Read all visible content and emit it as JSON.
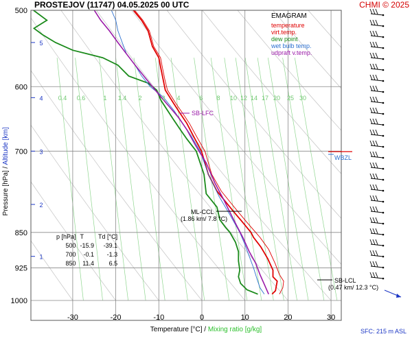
{
  "header": {
    "title": "PROSTEJOV (11747)    04.05.2025 00 UTC",
    "copyright": "CHMI © 2025"
  },
  "legend": {
    "head": "EMAGRAM",
    "items": [
      {
        "label": "temperature",
        "color": "#e00000"
      },
      {
        "label": "virt.temp.",
        "color": "#e00000"
      },
      {
        "label": "dew point",
        "color": "#1a8a1a"
      },
      {
        "label": "wet bulb temp.",
        "color": "#2a6fd0"
      },
      {
        "label": "udpraft v.temp.",
        "color": "#9a1aa8"
      }
    ]
  },
  "footer": {
    "sfc": "SFC: 215 m ASL",
    "xtitle_a": "Temperature [°C]  /  ",
    "xtitle_b": "Mixing ratio [g/kg]"
  },
  "y_axis": {
    "pressure_title": "Pressure [hPa]",
    "sep": "  /  ",
    "alt_title": "Altitude [km]"
  },
  "table": {
    "headers": [
      "p [hPa]",
      "T",
      "Td [°C]"
    ],
    "rows": [
      [
        "500",
        "-15.9",
        "-39.1"
      ],
      [
        "700",
        "-0.1",
        "-1.3"
      ],
      [
        "850",
        "11.4",
        "6.5"
      ]
    ]
  },
  "annotations": {
    "sb_lfc": "SB-LFC",
    "ml_ccl": "ML-CCL",
    "ml_ccl_sub": "(1.86 km/ 7.8 °C)",
    "sb_lcl": "SB-LCL",
    "sb_lcl_sub": "(0.47 km/ 12.3 °C)",
    "wbzl": "WBZL"
  },
  "chart_data": {
    "type": "line",
    "title": "PROSTEJOV (11747)    04.05.2025 00 UTC",
    "xlabel": "Temperature [°C]  /  Mixing ratio [g/kg]",
    "ylabel": "Pressure [hPa]  /  Altitude [km]",
    "x_ticks": [
      -30,
      -20,
      -10,
      0,
      10,
      20,
      30
    ],
    "x_range": [
      -39,
      35
    ],
    "y_ticks": [
      500,
      600,
      700,
      850,
      925,
      1000
    ],
    "y_range": [
      500,
      1000
    ],
    "y_scale": "log",
    "altitude_ticks": [
      1,
      2,
      3,
      4,
      5
    ],
    "mixing_ratio_labels": [
      "0.4",
      "0.6",
      "1",
      "1.4",
      "2",
      "3",
      "4",
      "6",
      "8",
      "10",
      "12",
      "14",
      "17",
      "20",
      "25",
      "30"
    ],
    "series": [
      {
        "name": "temperature",
        "color": "#e00000",
        "points": [
          [
            16.3,
            985
          ],
          [
            17.1,
            977
          ],
          [
            17.3,
            965
          ],
          [
            17.5,
            955
          ],
          [
            16.5,
            945
          ],
          [
            16.5,
            930
          ],
          [
            15.3,
            905
          ],
          [
            13.7,
            880
          ],
          [
            12.0,
            860
          ],
          [
            11.4,
            850
          ],
          [
            9.5,
            830
          ],
          [
            7.5,
            810
          ],
          [
            5.5,
            790
          ],
          [
            3.5,
            770
          ],
          [
            1.5,
            740
          ],
          [
            -0.1,
            700
          ],
          [
            -2.0,
            675
          ],
          [
            -3.5,
            655
          ],
          [
            -5.0,
            640
          ],
          [
            -6.5,
            625
          ],
          [
            -8.5,
            605
          ],
          [
            -9.0,
            590
          ],
          [
            -9.5,
            575
          ],
          [
            -10.0,
            560
          ],
          [
            -11.5,
            545
          ],
          [
            -12.5,
            525
          ],
          [
            -14.0,
            512
          ],
          [
            -15.9,
            500
          ]
        ]
      },
      {
        "name": "virt.temp.",
        "color": "#e00000",
        "points": [
          [
            18.0,
            985
          ],
          [
            18.8,
            970
          ],
          [
            19.0,
            955
          ],
          [
            18.0,
            940
          ],
          [
            17.0,
            915
          ],
          [
            15.5,
            885
          ],
          [
            13.5,
            860
          ],
          [
            12.5,
            850
          ],
          [
            10.5,
            830
          ],
          [
            8.5,
            810
          ],
          [
            6.5,
            790
          ],
          [
            4.5,
            770
          ],
          [
            2.3,
            740
          ],
          [
            0.7,
            700
          ],
          [
            -1.3,
            675
          ],
          [
            -2.9,
            655
          ],
          [
            -4.4,
            640
          ],
          [
            -6.0,
            625
          ],
          [
            -8.0,
            605
          ],
          [
            -8.6,
            590
          ],
          [
            -9.1,
            575
          ],
          [
            -9.6,
            560
          ],
          [
            -11.2,
            545
          ],
          [
            -12.2,
            525
          ],
          [
            -13.7,
            512
          ],
          [
            -15.6,
            500
          ]
        ]
      },
      {
        "name": "dew point",
        "color": "#1a8a1a",
        "points": [
          [
            13.0,
            985
          ],
          [
            10.5,
            975
          ],
          [
            9.0,
            960
          ],
          [
            8.5,
            945
          ],
          [
            8.8,
            930
          ],
          [
            8.5,
            910
          ],
          [
            8.5,
            890
          ],
          [
            7.8,
            870
          ],
          [
            6.5,
            850
          ],
          [
            5.5,
            840
          ],
          [
            4.2,
            825
          ],
          [
            3.5,
            800
          ],
          [
            1.0,
            775
          ],
          [
            0.5,
            740
          ],
          [
            -1.3,
            700
          ],
          [
            -3.5,
            680
          ],
          [
            -5.0,
            665
          ],
          [
            -6.5,
            650
          ],
          [
            -7.5,
            640
          ],
          [
            -9.5,
            620
          ],
          [
            -10.5,
            605
          ],
          [
            -12.5,
            595
          ],
          [
            -17.0,
            585
          ],
          [
            -19.5,
            570
          ],
          [
            -23.0,
            560
          ],
          [
            -30.0,
            550
          ],
          [
            -34.0,
            540
          ],
          [
            -37.0,
            530
          ],
          [
            -39.0,
            522
          ],
          [
            -36.0,
            512
          ],
          [
            -39.1,
            500
          ]
        ]
      },
      {
        "name": "wet bulb temp.",
        "color": "#2a6fd0",
        "points": [
          [
            14.5,
            985
          ],
          [
            13.5,
            970
          ],
          [
            12.8,
            950
          ],
          [
            12.0,
            925
          ],
          [
            11.0,
            900
          ],
          [
            10.0,
            875
          ],
          [
            8.8,
            850
          ],
          [
            6.5,
            815
          ],
          [
            4.0,
            780
          ],
          [
            1.5,
            740
          ],
          [
            -0.4,
            700
          ],
          [
            -2.5,
            675
          ],
          [
            -4.5,
            655
          ],
          [
            -6.5,
            635
          ],
          [
            -9.0,
            615
          ],
          [
            -12.0,
            600
          ],
          [
            -14.0,
            585
          ],
          [
            -15.5,
            570
          ],
          [
            -17.5,
            555
          ],
          [
            -18.5,
            540
          ],
          [
            -19.5,
            525
          ],
          [
            -20.0,
            512
          ],
          [
            -21.0,
            500
          ]
        ]
      },
      {
        "name": "udpraft v.temp.",
        "color": "#9a1aa8",
        "points": [
          [
            15.5,
            985
          ],
          [
            14.4,
            960
          ],
          [
            13.5,
            940
          ],
          [
            12.5,
            915
          ],
          [
            11.0,
            890
          ],
          [
            9.5,
            860
          ],
          [
            8.0,
            835
          ],
          [
            6.5,
            810
          ],
          [
            5.0,
            785
          ],
          [
            3.0,
            755
          ],
          [
            1.0,
            720
          ],
          [
            -1.5,
            690
          ],
          [
            -3.5,
            665
          ],
          [
            -5.5,
            645
          ],
          [
            -7.5,
            630
          ],
          [
            -9.5,
            615
          ],
          [
            -11.5,
            600
          ],
          [
            -13.5,
            585
          ],
          [
            -15.5,
            570
          ],
          [
            -17.5,
            555
          ],
          [
            -19.5,
            540
          ],
          [
            -21.5,
            525
          ],
          [
            -23.5,
            512
          ],
          [
            -25.0,
            500
          ]
        ]
      }
    ]
  }
}
